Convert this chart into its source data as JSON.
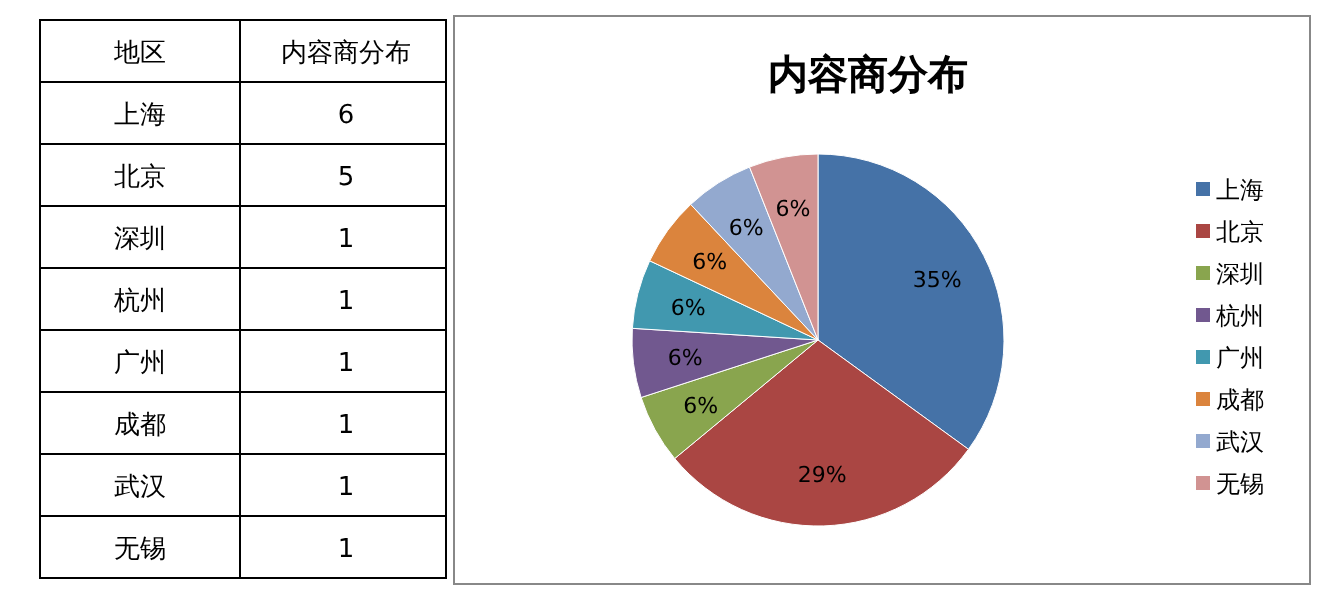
{
  "chart_data": {
    "type": "pie",
    "title": "内容商分布",
    "categories": [
      "上海",
      "北京",
      "深圳",
      "杭州",
      "广州",
      "成都",
      "武汉",
      "无锡"
    ],
    "values": [
      35,
      29,
      6,
      6,
      6,
      6,
      6,
      6
    ],
    "value_labels": [
      "35%",
      "29%",
      "6%",
      "6%",
      "6%",
      "6%",
      "6%",
      "6%"
    ],
    "colors": [
      "#4572a7",
      "#aa4643",
      "#89a54e",
      "#71588f",
      "#4198af",
      "#db843d",
      "#93a9cf",
      "#d19392"
    ],
    "legend": "right",
    "annotations": [
      "地区",
      "内容商分布",
      "6",
      "5",
      "1",
      "1",
      "1",
      "1",
      "1",
      "1"
    ]
  }
}
